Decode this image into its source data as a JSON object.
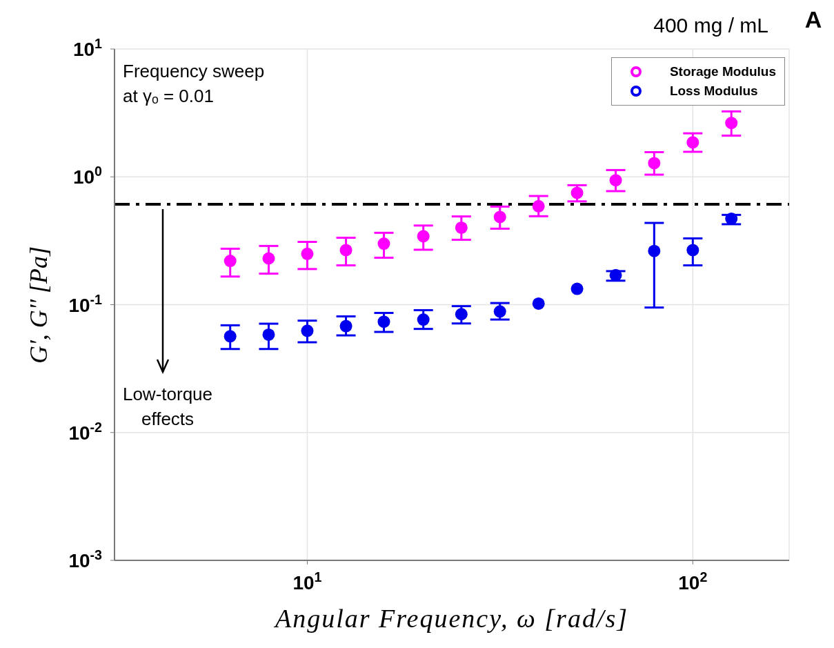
{
  "chart_data": {
    "type": "scatter",
    "title": "400 mg / mL",
    "xlabel": "Angular Frequency, ω [rad/s]",
    "ylabel": "G', G'' [Pa]",
    "annotations": [
      "Frequency sweep at γₒ = 0.01",
      "Low-torque effects",
      "A"
    ],
    "x": [
      6.31,
      7.94,
      10,
      12.6,
      15.8,
      20,
      25.1,
      31.6,
      39.8,
      50.1,
      63.1,
      79.4,
      100,
      125.9
    ],
    "series": [
      {
        "name": "Storage Modulus",
        "color": "#ff00ff",
        "values": [
          0.22,
          0.23,
          0.25,
          0.267,
          0.3,
          0.343,
          0.4,
          0.485,
          0.589,
          0.75,
          0.94,
          1.28,
          1.86,
          2.64
        ],
        "errors": [
          [
            0.166,
            0.274
          ],
          [
            0.175,
            0.288
          ],
          [
            0.19,
            0.31
          ],
          [
            0.203,
            0.334
          ],
          [
            0.233,
            0.365
          ],
          [
            0.269,
            0.416
          ],
          [
            0.322,
            0.49
          ],
          [
            0.393,
            0.585
          ],
          [
            0.492,
            0.708
          ],
          [
            0.643,
            0.86
          ],
          [
            0.773,
            1.13
          ],
          [
            1.04,
            1.56
          ],
          [
            1.57,
            2.19
          ],
          [
            2.1,
            3.25
          ]
        ]
      },
      {
        "name": "Loss Modulus",
        "color": "#0000ee",
        "values": [
          0.0566,
          0.0583,
          0.0625,
          0.068,
          0.0736,
          0.0765,
          0.0843,
          0.0885,
          0.102,
          0.133,
          0.17,
          0.263,
          0.267,
          0.47
        ],
        "errors": [
          [
            0.045,
            0.069
          ],
          [
            0.045,
            0.071
          ],
          [
            0.0508,
            0.075
          ],
          [
            0.0575,
            0.081
          ],
          [
            0.0612,
            0.0862
          ],
          [
            0.0646,
            0.0906
          ],
          [
            0.0713,
            0.0974
          ],
          [
            0.0765,
            0.103
          ],
          null,
          null,
          [
            0.154,
            0.183
          ],
          [
            0.095,
            0.436
          ],
          [
            0.203,
            0.33
          ],
          [
            0.426,
            0.504
          ]
        ]
      }
    ],
    "xlim": [
      3.162,
      177.8
    ],
    "xticks": [
      {
        "value": 10,
        "label": "10$^{1}$"
      },
      {
        "value": 100,
        "label": "10$^{2}$"
      }
    ],
    "ylim": [
      0.001,
      10
    ],
    "yticks": [
      {
        "value": 0.001,
        "label": "10$^{-3}$"
      },
      {
        "value": 0.01,
        "label": "10$^{-2}$"
      },
      {
        "value": 0.1,
        "label": "10$^{-1}$"
      },
      {
        "value": 1,
        "label": "10$^{0}$"
      },
      {
        "value": 10,
        "label": "10$^{1}$"
      }
    ],
    "log": "xy",
    "grid": true,
    "legend": "top right",
    "marker": "circle",
    "ref_lines": [
      {
        "axis": "y",
        "value": 0.61,
        "color": "#000000",
        "line_style": "dashed"
      }
    ]
  }
}
